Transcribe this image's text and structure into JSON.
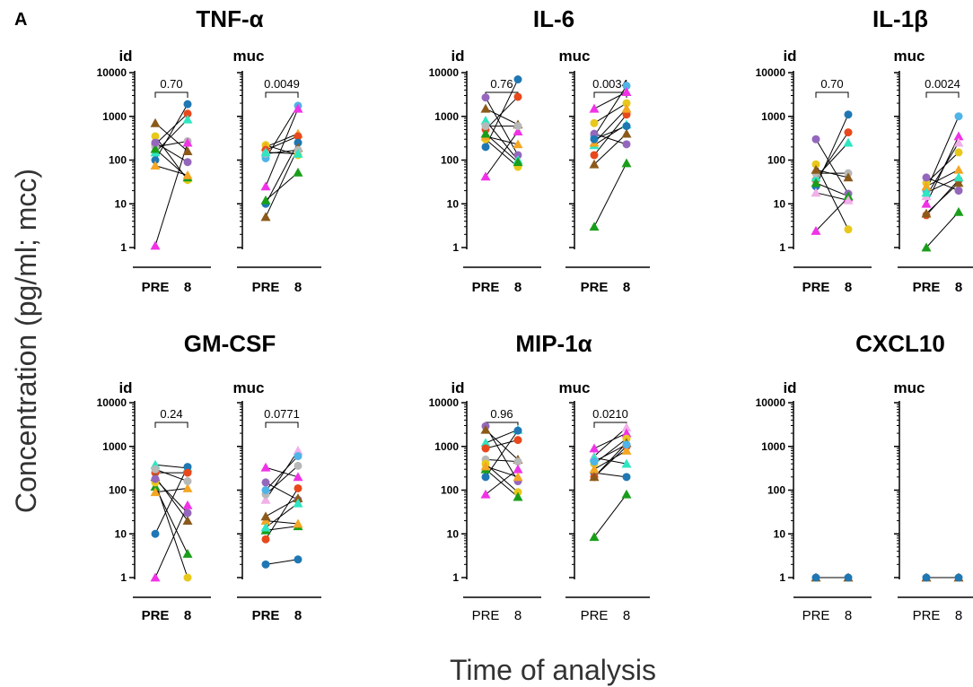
{
  "figure": {
    "panel_letter": "A",
    "ylabel": "Concentration (pg/ml; mcc)",
    "xlabel": "Time of analysis"
  },
  "colors": {
    "blue": "#1f77b4",
    "orange": "#f5a623",
    "red": "#e8481c",
    "green": "#1a9e1a",
    "purple": "#9467bd",
    "brown": "#8b5a1a",
    "pink": "#f032e6",
    "gray": "#b8b8b8",
    "teal": "#2ee6c2",
    "yellow": "#e8c81a",
    "sky": "#4fb4e8",
    "lightpink": "#f0b0e8"
  },
  "chart_data": [
    {
      "type": "scatter",
      "title": "TNF-α",
      "yscale": "log",
      "ylim": [
        1,
        10000
      ],
      "yticks": [
        "1",
        "10",
        "100",
        "1000",
        "10000"
      ],
      "categories": [
        "PRE",
        "8"
      ],
      "bold_ticks": true,
      "subpanels": [
        {
          "label": "id",
          "pvalue": "0.70",
          "pairs": [
            {
              "c": "blue",
              "m": "circle",
              "pre": 100,
              "post": 1900
            },
            {
              "c": "red",
              "m": "circle",
              "pre": 230,
              "post": 1150
            },
            {
              "c": "teal",
              "m": "triangle",
              "pre": 150,
              "post": 850
            },
            {
              "c": "brown",
              "m": "triangle",
              "pre": 700,
              "post": 160
            },
            {
              "c": "yellow",
              "m": "circle",
              "pre": 350,
              "post": 35
            },
            {
              "c": "gray",
              "m": "circle",
              "pre": 200,
              "post": 270
            },
            {
              "c": "green",
              "m": "triangle",
              "pre": 180,
              "post": 40
            },
            {
              "c": "orange",
              "m": "triangle",
              "pre": 75,
              "post": 45
            },
            {
              "c": "purple",
              "m": "circle",
              "pre": 250,
              "post": 90
            },
            {
              "c": "pink",
              "m": "triangle",
              "pre": 1.1,
              "post": 250
            }
          ]
        },
        {
          "label": "muc",
          "pvalue": "0.0049",
          "pairs": [
            {
              "c": "sky",
              "m": "circle",
              "pre": 110,
              "post": 1750
            },
            {
              "c": "pink",
              "m": "triangle",
              "pre": 25,
              "post": 1500
            },
            {
              "c": "yellow",
              "m": "circle",
              "pre": 220,
              "post": 130
            },
            {
              "c": "orange",
              "m": "triangle",
              "pre": 200,
              "post": 400
            },
            {
              "c": "red",
              "m": "circle",
              "pre": 170,
              "post": 350
            },
            {
              "c": "blue",
              "m": "circle",
              "pre": 10,
              "post": 250
            },
            {
              "c": "green",
              "m": "triangle",
              "pre": 12,
              "post": 52
            },
            {
              "c": "brown",
              "m": "triangle",
              "pre": 5,
              "post": 190
            },
            {
              "c": "gray",
              "m": "circle",
              "pre": 140,
              "post": 170
            },
            {
              "c": "teal",
              "m": "triangle",
              "pre": 150,
              "post": 140
            }
          ]
        }
      ]
    },
    {
      "type": "scatter",
      "title": "IL-6",
      "yscale": "log",
      "ylim": [
        1,
        10000
      ],
      "yticks": [
        "1",
        "10",
        "100",
        "1000",
        "10000"
      ],
      "categories": [
        "PRE",
        "8"
      ],
      "bold_ticks": true,
      "subpanels": [
        {
          "label": "id",
          "pvalue": "0.76",
          "pairs": [
            {
              "c": "blue",
              "m": "circle",
              "pre": 200,
              "post": 7000
            },
            {
              "c": "purple",
              "m": "circle",
              "pre": 2700,
              "post": 130
            },
            {
              "c": "red",
              "m": "circle",
              "pre": 500,
              "post": 2800
            },
            {
              "c": "brown",
              "m": "triangle",
              "pre": 1500,
              "post": 650
            },
            {
              "c": "teal",
              "m": "triangle",
              "pre": 800,
              "post": 100
            },
            {
              "c": "yellow",
              "m": "circle",
              "pre": 300,
              "post": 70
            },
            {
              "c": "pink",
              "m": "triangle",
              "pre": 42,
              "post": 450
            },
            {
              "c": "orange",
              "m": "triangle",
              "pre": 350,
              "post": 230
            },
            {
              "c": "green",
              "m": "triangle",
              "pre": 400,
              "post": 90
            },
            {
              "c": "gray",
              "m": "circle",
              "pre": 600,
              "post": 600
            }
          ]
        },
        {
          "label": "muc",
          "pvalue": "0.0034",
          "pairs": [
            {
              "c": "sky",
              "m": "circle",
              "pre": 350,
              "post": 5000
            },
            {
              "c": "pink",
              "m": "triangle",
              "pre": 1500,
              "post": 3600
            },
            {
              "c": "yellow",
              "m": "circle",
              "pre": 700,
              "post": 2000
            },
            {
              "c": "red",
              "m": "circle",
              "pre": 130,
              "post": 1100
            },
            {
              "c": "green",
              "m": "triangle",
              "pre": 3,
              "post": 85
            },
            {
              "c": "brown",
              "m": "triangle",
              "pre": 80,
              "post": 400
            },
            {
              "c": "purple",
              "m": "circle",
              "pre": 400,
              "post": 230
            },
            {
              "c": "teal",
              "m": "triangle",
              "pre": 220,
              "post": 650
            },
            {
              "c": "orange",
              "m": "triangle",
              "pre": 250,
              "post": 1500
            },
            {
              "c": "blue",
              "m": "circle",
              "pre": 300,
              "post": 600
            }
          ]
        }
      ]
    },
    {
      "type": "scatter",
      "title": "IL-1β",
      "yscale": "log",
      "ylim": [
        1,
        10000
      ],
      "yticks": [
        "1",
        "10",
        "100",
        "1000",
        "10000"
      ],
      "categories": [
        "PRE",
        "8"
      ],
      "bold_ticks": true,
      "subpanels": [
        {
          "label": "id",
          "pvalue": "0.70",
          "pairs": [
            {
              "c": "purple",
              "m": "circle",
              "pre": 300,
              "post": 17
            },
            {
              "c": "blue",
              "m": "circle",
              "pre": 25,
              "post": 1100
            },
            {
              "c": "red",
              "m": "circle",
              "pre": 35,
              "post": 430
            },
            {
              "c": "teal",
              "m": "triangle",
              "pre": 40,
              "post": 250
            },
            {
              "c": "yellow",
              "m": "circle",
              "pre": 80,
              "post": 2.6
            },
            {
              "c": "pink",
              "m": "triangle",
              "pre": 2.4,
              "post": 14
            },
            {
              "c": "gray",
              "m": "circle",
              "pre": 50,
              "post": 50
            },
            {
              "c": "brown",
              "m": "triangle",
              "pre": 60,
              "post": 40
            },
            {
              "c": "green",
              "m": "triangle",
              "pre": 30,
              "post": 15
            },
            {
              "c": "lightpink",
              "m": "triangle",
              "pre": 18,
              "post": 12
            }
          ]
        },
        {
          "label": "muc",
          "pvalue": "0.0024",
          "pairs": [
            {
              "c": "sky",
              "m": "circle",
              "pre": 20,
              "post": 1000
            },
            {
              "c": "pink",
              "m": "triangle",
              "pre": 10,
              "post": 350
            },
            {
              "c": "lightpink",
              "m": "triangle",
              "pre": 15,
              "post": 250
            },
            {
              "c": "yellow",
              "m": "circle",
              "pre": 30,
              "post": 150
            },
            {
              "c": "orange",
              "m": "triangle",
              "pre": 25,
              "post": 60
            },
            {
              "c": "red",
              "m": "circle",
              "pre": 5.5,
              "post": 35
            },
            {
              "c": "green",
              "m": "triangle",
              "pre": 1,
              "post": 6.5
            },
            {
              "c": "brown",
              "m": "triangle",
              "pre": 6,
              "post": 30
            },
            {
              "c": "purple",
              "m": "circle",
              "pre": 40,
              "post": 20
            },
            {
              "c": "teal",
              "m": "triangle",
              "pre": 18,
              "post": 40
            }
          ]
        }
      ]
    },
    {
      "type": "scatter",
      "title": "GM-CSF",
      "yscale": "log",
      "ylim": [
        1,
        10000
      ],
      "yticks": [
        "1",
        "10",
        "100",
        "1000",
        "10000"
      ],
      "categories": [
        "PRE",
        "8"
      ],
      "bold_ticks": true,
      "subpanels": [
        {
          "label": "id",
          "pvalue": "0.24",
          "pairs": [
            {
              "c": "teal",
              "m": "triangle",
              "pre": 380,
              "post": 320
            },
            {
              "c": "pink",
              "m": "triangle",
              "pre": 1,
              "post": 45
            },
            {
              "c": "blue",
              "m": "circle",
              "pre": 10,
              "post": 340
            },
            {
              "c": "red",
              "m": "circle",
              "pre": 250,
              "post": 250
            },
            {
              "c": "brown",
              "m": "triangle",
              "pre": 200,
              "post": 20
            },
            {
              "c": "green",
              "m": "triangle",
              "pre": 120,
              "post": 3.5
            },
            {
              "c": "orange",
              "m": "triangle",
              "pre": 90,
              "post": 110
            },
            {
              "c": "yellow",
              "m": "circle",
              "pre": 150,
              "post": 1
            },
            {
              "c": "gray",
              "m": "circle",
              "pre": 300,
              "post": 160
            },
            {
              "c": "purple",
              "m": "circle",
              "pre": 180,
              "post": 30
            }
          ]
        },
        {
          "label": "muc",
          "pvalue": "0.0771",
          "pairs": [
            {
              "c": "blue",
              "m": "circle",
              "pre": 2,
              "post": 2.6
            },
            {
              "c": "pink",
              "m": "triangle",
              "pre": 330,
              "post": 200
            },
            {
              "c": "lightpink",
              "m": "triangle",
              "pre": 60,
              "post": 800
            },
            {
              "c": "purple",
              "m": "circle",
              "pre": 150,
              "post": 60
            },
            {
              "c": "red",
              "m": "circle",
              "pre": 7.5,
              "post": 110
            },
            {
              "c": "green",
              "m": "triangle",
              "pre": 12,
              "post": 15
            },
            {
              "c": "orange",
              "m": "triangle",
              "pre": 20,
              "post": 17
            },
            {
              "c": "brown",
              "m": "triangle",
              "pre": 25,
              "post": 65
            },
            {
              "c": "gray",
              "m": "circle",
              "pre": 80,
              "post": 360
            },
            {
              "c": "sky",
              "m": "circle",
              "pre": 100,
              "post": 600
            },
            {
              "c": "teal",
              "m": "triangle",
              "pre": 14,
              "post": 50
            }
          ]
        }
      ]
    },
    {
      "type": "scatter",
      "title": "MIP-1α",
      "yscale": "log",
      "ylim": [
        1,
        10000
      ],
      "yticks": [
        "1",
        "10",
        "100",
        "1000",
        "10000"
      ],
      "categories": [
        "PRE",
        "8"
      ],
      "bold_ticks": false,
      "subpanels": [
        {
          "label": "id",
          "pvalue": "0.96",
          "pairs": [
            {
              "c": "purple",
              "m": "circle",
              "pre": 2900,
              "post": 160
            },
            {
              "c": "brown",
              "m": "triangle",
              "pre": 2400,
              "post": 500
            },
            {
              "c": "teal",
              "m": "triangle",
              "pre": 1200,
              "post": 2400
            },
            {
              "c": "red",
              "m": "circle",
              "pre": 900,
              "post": 1400
            },
            {
              "c": "gray",
              "m": "circle",
              "pre": 500,
              "post": 450
            },
            {
              "c": "blue",
              "m": "circle",
              "pre": 200,
              "post": 2300
            },
            {
              "c": "pink",
              "m": "triangle",
              "pre": 80,
              "post": 300
            },
            {
              "c": "yellow",
              "m": "circle",
              "pre": 400,
              "post": 90
            },
            {
              "c": "green",
              "m": "triangle",
              "pre": 300,
              "post": 70
            },
            {
              "c": "orange",
              "m": "triangle",
              "pre": 350,
              "post": 200
            }
          ]
        },
        {
          "label": "muc",
          "pvalue": "0.0210",
          "pairs": [
            {
              "c": "lightpink",
              "m": "triangle",
              "pre": 600,
              "post": 2700
            },
            {
              "c": "pink",
              "m": "triangle",
              "pre": 900,
              "post": 2000
            },
            {
              "c": "green",
              "m": "triangle",
              "pre": 8.5,
              "post": 80
            },
            {
              "c": "blue",
              "m": "circle",
              "pre": 250,
              "post": 200
            },
            {
              "c": "red",
              "m": "circle",
              "pre": 200,
              "post": 1000
            },
            {
              "c": "yellow",
              "m": "circle",
              "pre": 400,
              "post": 1500
            },
            {
              "c": "orange",
              "m": "triangle",
              "pre": 300,
              "post": 800
            },
            {
              "c": "brown",
              "m": "triangle",
              "pre": 200,
              "post": 1200
            },
            {
              "c": "teal",
              "m": "triangle",
              "pre": 550,
              "post": 400
            },
            {
              "c": "sky",
              "m": "circle",
              "pre": 450,
              "post": 1100
            }
          ]
        }
      ]
    },
    {
      "type": "scatter",
      "title": "CXCL10",
      "yscale": "log",
      "ylim": [
        1,
        10000
      ],
      "yticks": [
        "1",
        "10",
        "100",
        "1000",
        "10000"
      ],
      "categories": [
        "PRE",
        "8"
      ],
      "bold_ticks": false,
      "subpanels": [
        {
          "label": "id",
          "pvalue": "",
          "pairs": [
            {
              "c": "brown",
              "m": "triangle",
              "pre": 1,
              "post": 1
            },
            {
              "c": "blue",
              "m": "circle",
              "pre": 1,
              "post": 1
            }
          ]
        },
        {
          "label": "muc",
          "pvalue": "",
          "pairs": [
            {
              "c": "brown",
              "m": "triangle",
              "pre": 1,
              "post": 1
            },
            {
              "c": "blue",
              "m": "circle",
              "pre": 1,
              "post": 1
            }
          ]
        }
      ]
    }
  ]
}
